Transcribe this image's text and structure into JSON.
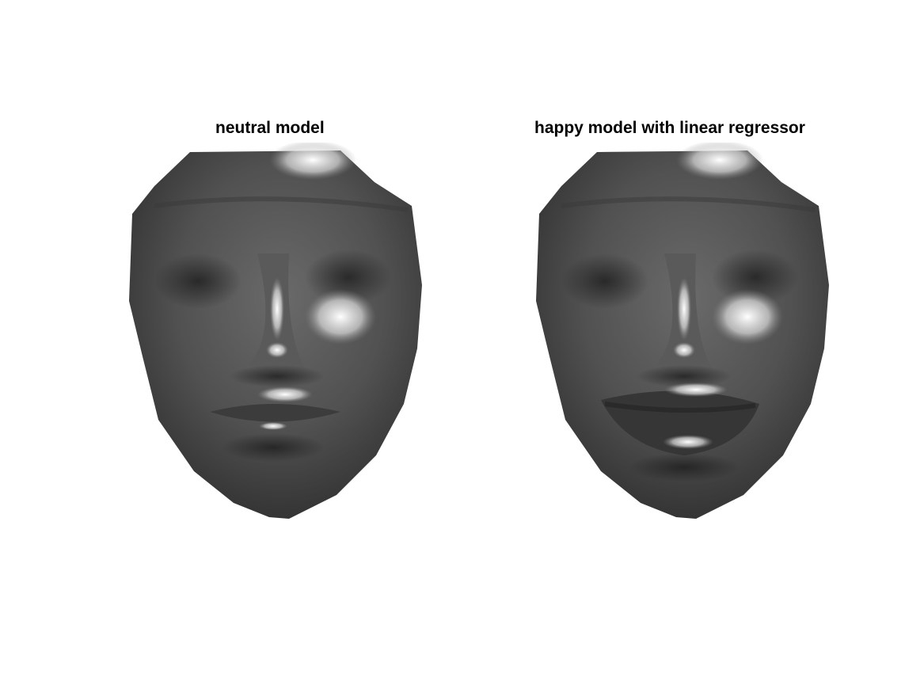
{
  "panels": [
    {
      "title": "neutral model",
      "expression": "neutral",
      "surface_color": "#4a4a4a",
      "highlight_color": "#ffffff"
    },
    {
      "title": "happy model with linear regressor",
      "expression": "happy",
      "surface_color": "#4a4a4a",
      "highlight_color": "#ffffff"
    }
  ]
}
